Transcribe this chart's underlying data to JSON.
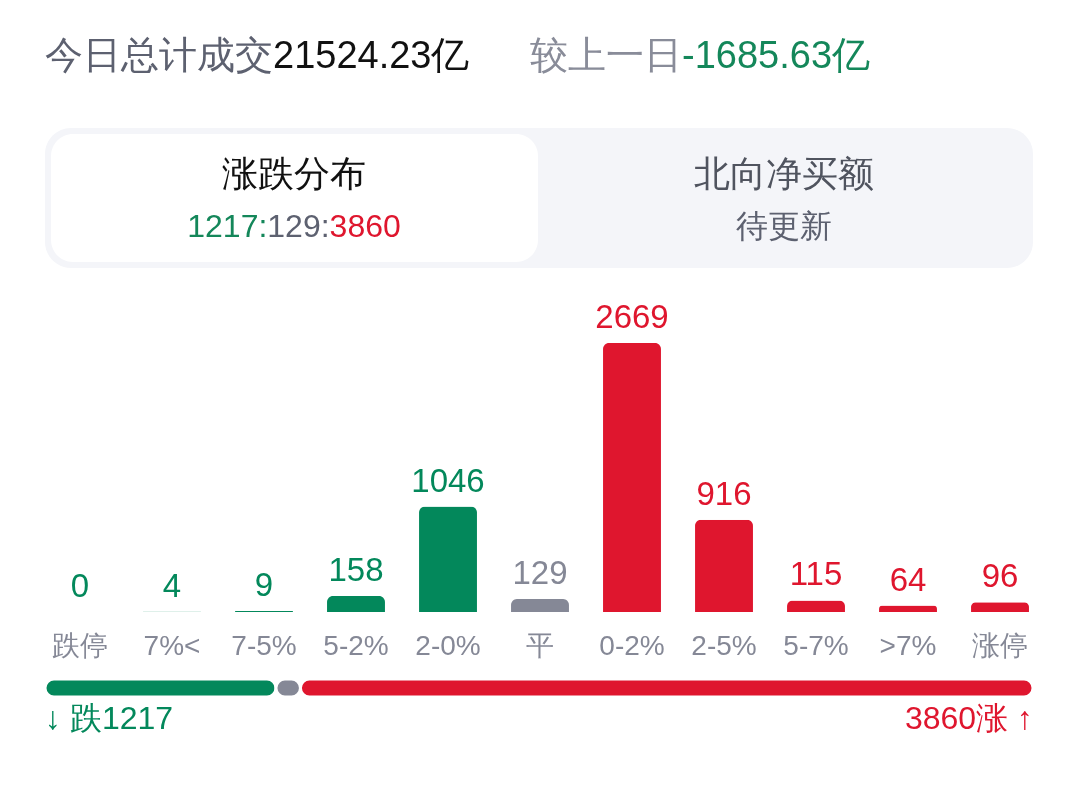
{
  "chart_data": [
    {
      "type": "other",
      "annotations": [
        "今日总计成交",
        "21524.23亿",
        "较上一日",
        "-1685.63亿",
        "涨跌分布",
        "1217:",
        "129:",
        "3860",
        "北向净买额",
        "待更新"
      ]
    },
    {
      "type": "bar",
      "categories": [
        "跌停",
        "7%<",
        "7-5%",
        "5-2%",
        "2-0%",
        "平",
        "0-2%",
        "2-5%",
        "5-7%",
        ">7%",
        "涨停"
      ],
      "values": [
        0,
        4,
        9,
        158,
        1046,
        129,
        2669,
        916,
        115,
        64,
        96
      ],
      "colors": [
        "#03885b",
        "#03885b",
        "#03885b",
        "#03885b",
        "#03885b",
        "#858896",
        "#df162e",
        "#df162e",
        "#df162e",
        "#df162e",
        "#df162e"
      ],
      "data_labels": true,
      "tick_labels": "x"
    },
    {
      "type": "bar",
      "orientation": "horizontal",
      "stacked": true,
      "categories": [
        null
      ],
      "series": [
        {
          "color": "#03885b",
          "values": [
            1217
          ],
          "value_labels": [
            "↓ 跌1217"
          ]
        },
        {
          "color": "#858896",
          "values": [
            129
          ],
          "value_labels": [
            null
          ]
        },
        {
          "color": "#df162e",
          "values": [
            3860
          ],
          "value_labels": [
            "3860涨 ↑"
          ]
        }
      ],
      "tick_labels": false
    }
  ]
}
